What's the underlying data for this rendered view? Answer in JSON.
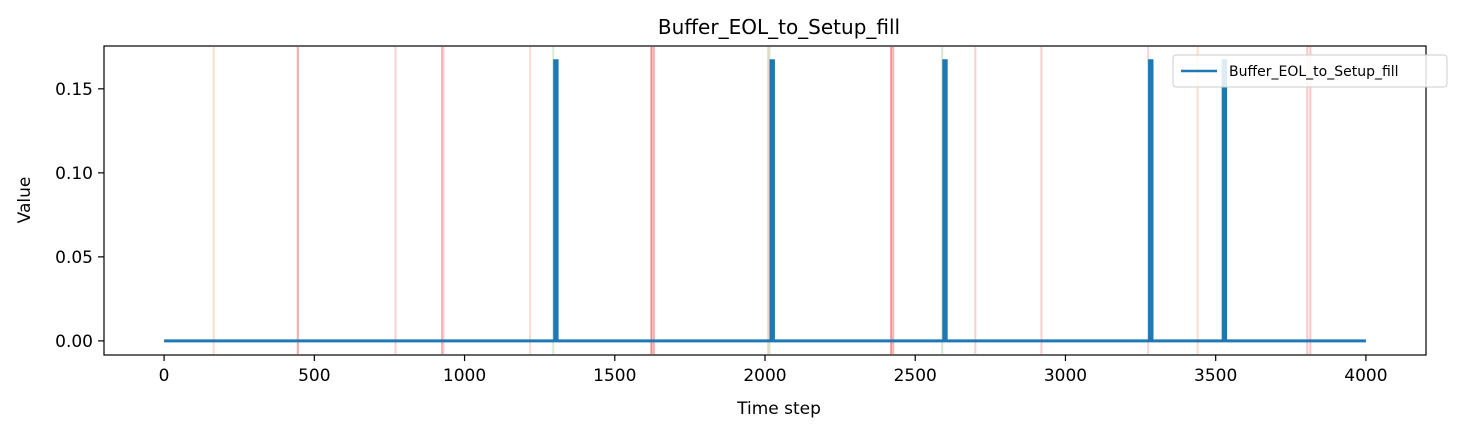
{
  "chart_data": {
    "type": "line",
    "title": "Buffer_EOL_to_Setup_fill",
    "xlabel": "Time step",
    "ylabel": "Value",
    "xlim": [
      -200,
      4200
    ],
    "ylim": [
      -0.0084,
      0.1755
    ],
    "x_ticks": [
      0,
      500,
      1000,
      1500,
      2000,
      2500,
      3000,
      3500,
      4000
    ],
    "x_tick_labels": [
      "0",
      "500",
      "1000",
      "1500",
      "2000",
      "2500",
      "3000",
      "3500",
      "4000"
    ],
    "y_ticks": [
      0.0,
      0.05,
      0.1,
      0.15
    ],
    "y_tick_labels": [
      "0.00",
      "0.05",
      "0.10",
      "0.15"
    ],
    "grid": false,
    "legend_position": "top-right",
    "series": [
      {
        "name": "Buffer_EOL_to_Setup_fill",
        "color": "#1f77b4",
        "baseline": 0.0,
        "x_range": [
          0,
          4000
        ],
        "spikes": [
          {
            "x": 1300,
            "value": 0.1667
          },
          {
            "x": 2020,
            "value": 0.1667
          },
          {
            "x": 2595,
            "value": 0.1667
          },
          {
            "x": 3280,
            "value": 0.1667
          },
          {
            "x": 3525,
            "value": 0.1667
          }
        ]
      }
    ],
    "vertical_markers": [
      {
        "x": 165,
        "color": "#f4a582",
        "opacity": 0.4
      },
      {
        "x": 445,
        "color": "#f25c5c",
        "opacity": 0.55
      },
      {
        "x": 770,
        "color": "#f4a0a0",
        "opacity": 0.5
      },
      {
        "x": 925,
        "color": "#f25c5c",
        "opacity": 0.45
      },
      {
        "x": 930,
        "color": "#f4a0a0",
        "opacity": 0.5
      },
      {
        "x": 1218,
        "color": "#f4a582",
        "opacity": 0.4
      },
      {
        "x": 1295,
        "color": "#9ccf9c",
        "opacity": 0.4
      },
      {
        "x": 1622,
        "color": "#e8403a",
        "opacity": 0.6
      },
      {
        "x": 1630,
        "color": "#f25c5c",
        "opacity": 0.5
      },
      {
        "x": 2010,
        "color": "#f4a582",
        "opacity": 0.4
      },
      {
        "x": 2015,
        "color": "#9ccf9c",
        "opacity": 0.45
      },
      {
        "x": 2420,
        "color": "#e8403a",
        "opacity": 0.55
      },
      {
        "x": 2427,
        "color": "#f25c5c",
        "opacity": 0.45
      },
      {
        "x": 2590,
        "color": "#9ccf9c",
        "opacity": 0.45
      },
      {
        "x": 2700,
        "color": "#f4a0a0",
        "opacity": 0.5
      },
      {
        "x": 2920,
        "color": "#f4a0a0",
        "opacity": 0.5
      },
      {
        "x": 3275,
        "color": "#f4a0a0",
        "opacity": 0.45
      },
      {
        "x": 3440,
        "color": "#f4a582",
        "opacity": 0.4
      },
      {
        "x": 3805,
        "color": "#f4a0a0",
        "opacity": 0.6
      },
      {
        "x": 3815,
        "color": "#f4a0a0",
        "opacity": 0.6
      }
    ]
  }
}
